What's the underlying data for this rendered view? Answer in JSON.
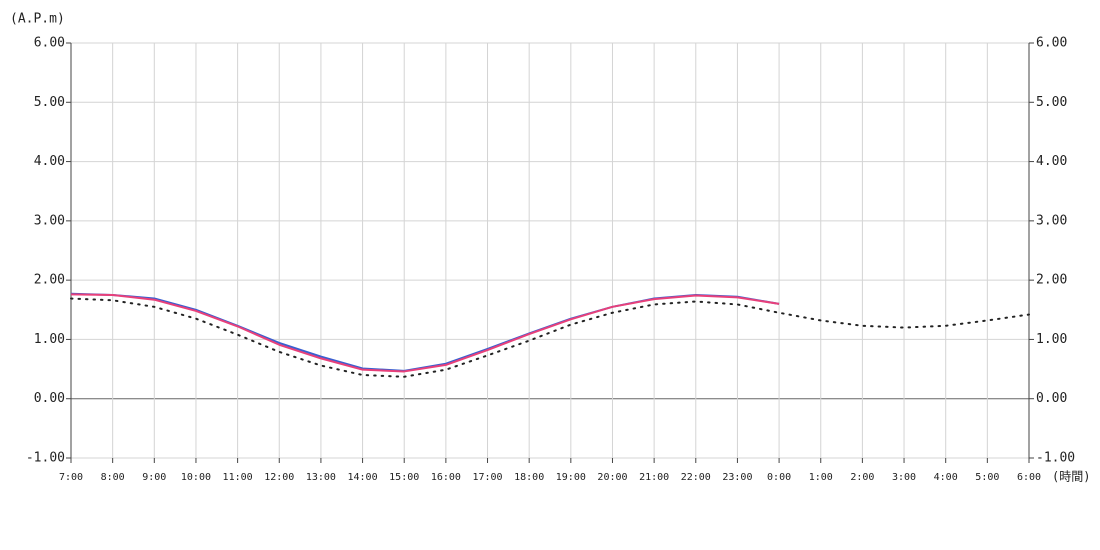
{
  "chart_data": {
    "type": "line",
    "y_label": "(A.P.m)",
    "x_label": "(時間)",
    "categories": [
      "7:00",
      "8:00",
      "9:00",
      "10:00",
      "11:00",
      "12:00",
      "13:00",
      "14:00",
      "15:00",
      "16:00",
      "17:00",
      "18:00",
      "19:00",
      "20:00",
      "21:00",
      "22:00",
      "23:00",
      "0:00",
      "1:00",
      "2:00",
      "3:00",
      "4:00",
      "5:00",
      "6:00"
    ],
    "series": [
      {
        "color": "#3a5fd0",
        "dashed": false,
        "values": [
          1.77,
          1.75,
          1.69,
          1.5,
          1.23,
          0.94,
          0.71,
          0.51,
          0.47,
          0.59,
          0.84,
          1.1,
          1.35,
          1.55,
          1.69,
          1.75,
          1.72,
          1.6,
          null,
          null,
          null,
          null,
          null,
          null
        ]
      },
      {
        "color": "#e8407a",
        "dashed": false,
        "values": [
          1.76,
          1.75,
          1.67,
          1.48,
          1.22,
          0.91,
          0.68,
          0.49,
          0.46,
          0.57,
          0.82,
          1.09,
          1.34,
          1.55,
          1.68,
          1.74,
          1.71,
          1.6,
          null,
          null,
          null,
          null,
          null,
          null
        ]
      },
      {
        "color": "#222222",
        "dashed": true,
        "values": [
          1.69,
          1.66,
          1.55,
          1.35,
          1.08,
          0.79,
          0.56,
          0.4,
          0.37,
          0.49,
          0.73,
          0.98,
          1.25,
          1.45,
          1.59,
          1.64,
          1.59,
          1.45,
          1.32,
          1.23,
          1.2,
          1.23,
          1.32,
          1.42
        ]
      }
    ],
    "ylim": [
      -1,
      6
    ],
    "yticks": [
      {
        "value": -1,
        "label": "-1.00"
      },
      {
        "value": 0,
        "label": "0.00"
      },
      {
        "value": 1,
        "label": "1.00"
      },
      {
        "value": 2,
        "label": "2.00"
      },
      {
        "value": 3,
        "label": "3.00"
      },
      {
        "value": 4,
        "label": "4.00"
      },
      {
        "value": 5,
        "label": "5.00"
      },
      {
        "value": 6,
        "label": "6.00"
      }
    ],
    "grid": true
  }
}
